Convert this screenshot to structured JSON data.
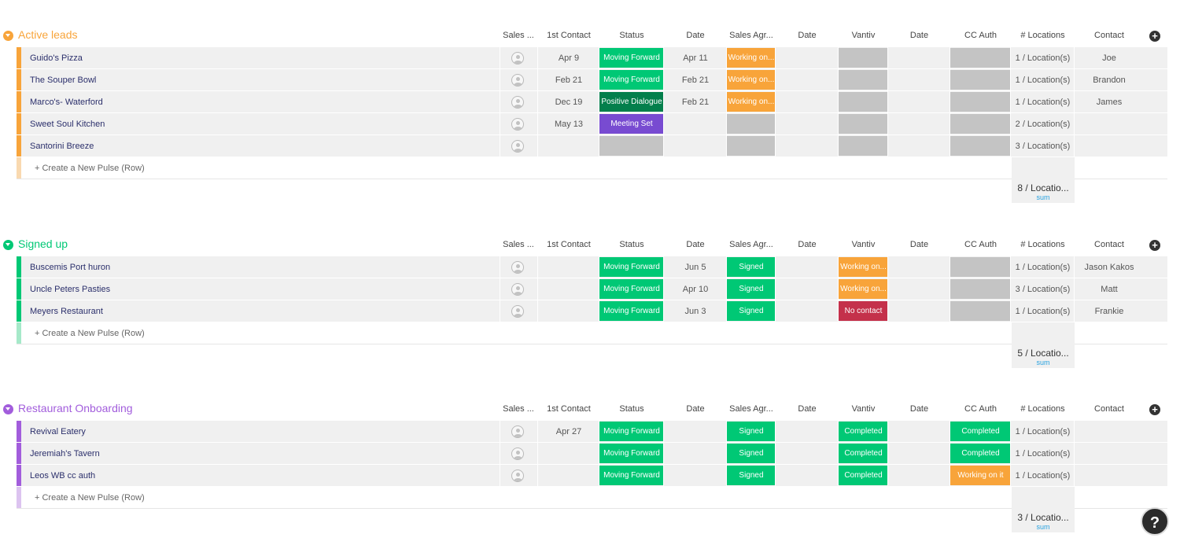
{
  "columns": [
    "Sales ...",
    "1st Contact",
    "Status",
    "Date",
    "Sales Agr...",
    "Date",
    "Vantiv",
    "Date",
    "CC Auth",
    "# Locations",
    "Contact"
  ],
  "create_label": "+ Create a New Pulse (Row)",
  "sum_label": "sum",
  "help_label": "?",
  "add_column_label": "+",
  "colors": {
    "orange": "#f8a43a",
    "green": "#00c875",
    "dark_green": "#037f4c",
    "purple": "#a25ddc",
    "meeting_purple": "#784bd1",
    "red": "#c4314b",
    "gray": "#c4c4c4"
  },
  "groups": [
    {
      "title": "Active leads",
      "color": "#f8a43a",
      "light_color": "#f9d9b0",
      "sum_value": "8 / Locatio...",
      "rows": [
        {
          "name": "Guido's Pizza",
          "first_contact": "Apr 9",
          "status": {
            "label": "Moving Forward",
            "color": "#00c875"
          },
          "date1": "Apr 11",
          "sales_agr": {
            "label": "Working on...",
            "color": "#f8a43a"
          },
          "date2": "",
          "vantiv": {
            "label": "",
            "color": "#c4c4c4"
          },
          "date3": "",
          "cc_auth": {
            "label": "",
            "color": "#c4c4c4"
          },
          "locations": "1 / Location(s)",
          "contact": "Joe"
        },
        {
          "name": "The Souper Bowl",
          "first_contact": "Feb 21",
          "status": {
            "label": "Moving Forward",
            "color": "#00c875"
          },
          "date1": "Feb 21",
          "sales_agr": {
            "label": "Working on...",
            "color": "#f8a43a"
          },
          "date2": "",
          "vantiv": {
            "label": "",
            "color": "#c4c4c4"
          },
          "date3": "",
          "cc_auth": {
            "label": "",
            "color": "#c4c4c4"
          },
          "locations": "1 / Location(s)",
          "contact": "Brandon"
        },
        {
          "name": "Marco's- Waterford",
          "first_contact": "Dec 19",
          "status": {
            "label": "Positive Dialogue",
            "color": "#037f4c"
          },
          "date1": "Feb 21",
          "sales_agr": {
            "label": "Working on...",
            "color": "#f8a43a"
          },
          "date2": "",
          "vantiv": {
            "label": "",
            "color": "#c4c4c4"
          },
          "date3": "",
          "cc_auth": {
            "label": "",
            "color": "#c4c4c4"
          },
          "locations": "1 / Location(s)",
          "contact": "James"
        },
        {
          "name": "Sweet Soul Kitchen",
          "first_contact": "May 13",
          "status": {
            "label": "Meeting Set",
            "color": "#784bd1"
          },
          "date1": "",
          "sales_agr": {
            "label": "",
            "color": "#c4c4c4"
          },
          "date2": "",
          "vantiv": {
            "label": "",
            "color": "#c4c4c4"
          },
          "date3": "",
          "cc_auth": {
            "label": "",
            "color": "#c4c4c4"
          },
          "locations": "2 / Location(s)",
          "contact": ""
        },
        {
          "name": "Santorini Breeze",
          "first_contact": "",
          "status": {
            "label": "",
            "color": "#c4c4c4"
          },
          "date1": "",
          "sales_agr": {
            "label": "",
            "color": "#c4c4c4"
          },
          "date2": "",
          "vantiv": {
            "label": "",
            "color": "#c4c4c4"
          },
          "date3": "",
          "cc_auth": {
            "label": "",
            "color": "#c4c4c4"
          },
          "locations": "3 / Location(s)",
          "contact": ""
        }
      ]
    },
    {
      "title": "Signed up",
      "color": "#00c875",
      "light_color": "#a6e9c9",
      "sum_value": "5 / Locatio...",
      "rows": [
        {
          "name": "Buscemis Port huron",
          "first_contact": "",
          "status": {
            "label": "Moving Forward",
            "color": "#00c875"
          },
          "date1": "Jun 5",
          "sales_agr": {
            "label": "Signed",
            "color": "#00c875"
          },
          "date2": "",
          "vantiv": {
            "label": "Working on...",
            "color": "#f8a43a"
          },
          "date3": "",
          "cc_auth": {
            "label": "",
            "color": "#c4c4c4"
          },
          "locations": "1 / Location(s)",
          "contact": "Jason Kakos"
        },
        {
          "name": "Uncle Peters Pasties",
          "first_contact": "",
          "status": {
            "label": "Moving Forward",
            "color": "#00c875"
          },
          "date1": "Apr 10",
          "sales_agr": {
            "label": "Signed",
            "color": "#00c875"
          },
          "date2": "",
          "vantiv": {
            "label": "Working on...",
            "color": "#f8a43a"
          },
          "date3": "",
          "cc_auth": {
            "label": "",
            "color": "#c4c4c4"
          },
          "locations": "3 / Location(s)",
          "contact": "Matt"
        },
        {
          "name": "Meyers Restaurant",
          "first_contact": "",
          "status": {
            "label": "Moving Forward",
            "color": "#00c875"
          },
          "date1": "Jun 3",
          "sales_agr": {
            "label": "Signed",
            "color": "#00c875"
          },
          "date2": "",
          "vantiv": {
            "label": "No contact",
            "color": "#c4314b"
          },
          "date3": "",
          "cc_auth": {
            "label": "",
            "color": "#c4c4c4"
          },
          "locations": "1 / Location(s)",
          "contact": "Frankie"
        }
      ]
    },
    {
      "title": "Restaurant Onboarding",
      "color": "#a25ddc",
      "light_color": "#dcc3f0",
      "sum_value": "3 / Locatio...",
      "rows": [
        {
          "name": "Revival Eatery",
          "first_contact": "Apr 27",
          "status": {
            "label": "Moving Forward",
            "color": "#00c875"
          },
          "date1": "",
          "sales_agr": {
            "label": "Signed",
            "color": "#00c875"
          },
          "date2": "",
          "vantiv": {
            "label": "Completed",
            "color": "#00c875"
          },
          "date3": "",
          "cc_auth": {
            "label": "Completed",
            "color": "#00c875"
          },
          "locations": "1 / Location(s)",
          "contact": ""
        },
        {
          "name": "Jeremiah's Tavern",
          "first_contact": "",
          "status": {
            "label": "Moving Forward",
            "color": "#00c875"
          },
          "date1": "",
          "sales_agr": {
            "label": "Signed",
            "color": "#00c875"
          },
          "date2": "",
          "vantiv": {
            "label": "Completed",
            "color": "#00c875"
          },
          "date3": "",
          "cc_auth": {
            "label": "Completed",
            "color": "#00c875"
          },
          "locations": "1 / Location(s)",
          "contact": ""
        },
        {
          "name": "Leos WB cc auth",
          "first_contact": "",
          "status": {
            "label": "Moving Forward",
            "color": "#00c875"
          },
          "date1": "",
          "sales_agr": {
            "label": "Signed",
            "color": "#00c875"
          },
          "date2": "",
          "vantiv": {
            "label": "Completed",
            "color": "#00c875"
          },
          "date3": "",
          "cc_auth": {
            "label": "Working on it",
            "color": "#f8a43a"
          },
          "locations": "1 / Location(s)",
          "contact": ""
        }
      ]
    }
  ]
}
